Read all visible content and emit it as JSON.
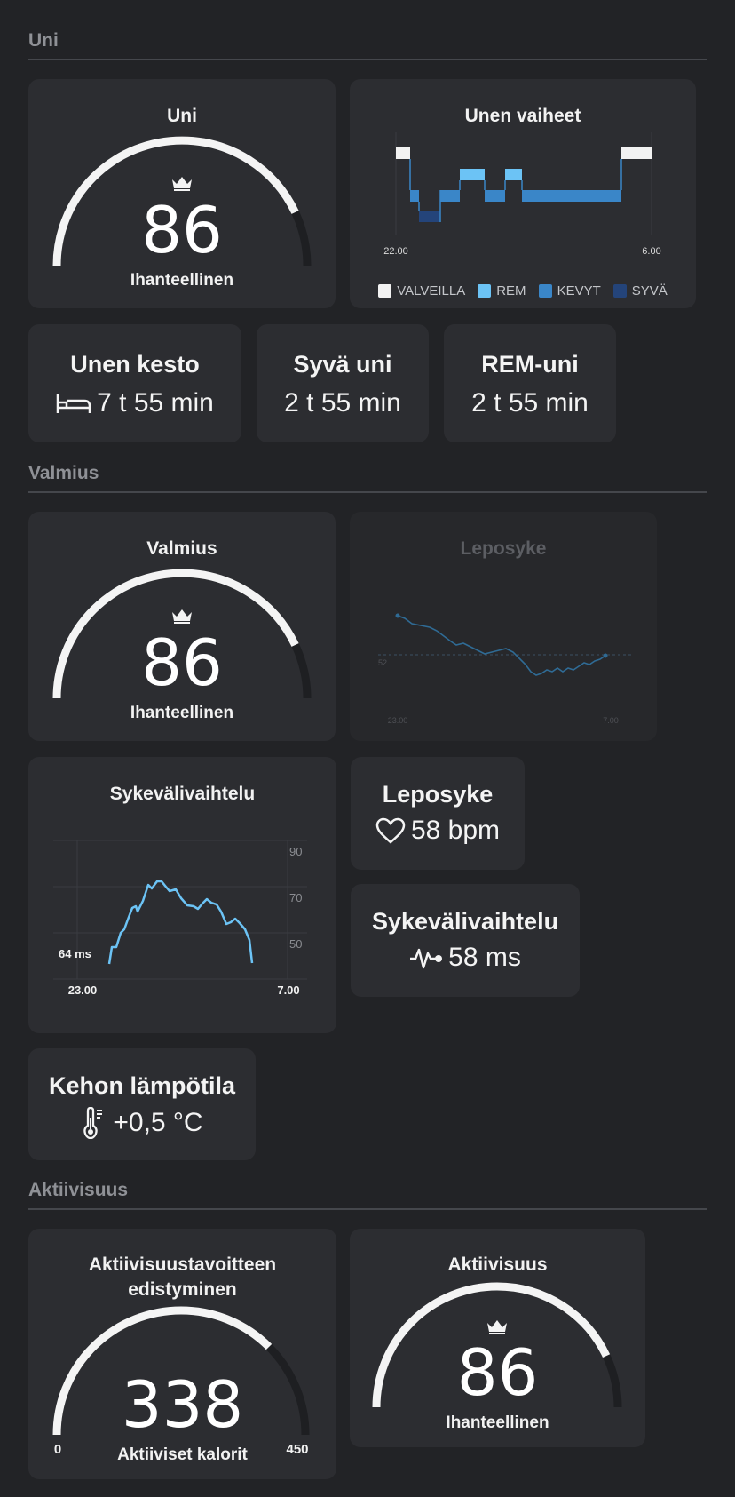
{
  "sections": {
    "sleep": "Uni",
    "readiness": "Valmius",
    "activity": "Aktiivisuus"
  },
  "sleep_score": {
    "title": "Uni",
    "value": "86",
    "label": "Ihanteellinen",
    "fraction": 0.86,
    "icon": "crown-icon"
  },
  "sleep_stages": {
    "title": "Unen vaiheet",
    "start": "22.00",
    "end": "6.00",
    "legend": [
      {
        "label": "VALVEILLA",
        "color": "#f2f2f2"
      },
      {
        "label": "REM",
        "color": "#6cc3f5"
      },
      {
        "label": "KEVYT",
        "color": "#3a86c8"
      },
      {
        "label": "SYVÄ",
        "color": "#24447a"
      }
    ]
  },
  "sleep_stats": [
    {
      "title": "Unen kesto",
      "value": "7 t 55 min",
      "icon": "bed-icon"
    },
    {
      "title": "Syvä uni",
      "value": "2 t 55 min"
    },
    {
      "title": "REM-uni",
      "value": "2 t 55 min"
    }
  ],
  "readiness_score": {
    "title": "Valmius",
    "value": "86",
    "label": "Ihanteellinen",
    "fraction": 0.86,
    "icon": "crown-icon"
  },
  "resting_hr_chart": {
    "title": "Leposyke",
    "ref": "52",
    "start": "23.00",
    "end": "7.00"
  },
  "hrv_chart": {
    "title": "Sykevälivaihtelu",
    "yticks": [
      "90",
      "70",
      "50"
    ],
    "current": "64 ms",
    "start": "23.00",
    "end": "7.00"
  },
  "resting_hr_stat": {
    "title": "Leposyke",
    "value": "58 bpm",
    "icon": "heart-icon"
  },
  "hrv_stat": {
    "title": "Sykevälivaihtelu",
    "value": "58 ms",
    "icon": "pulse-icon"
  },
  "body_temp_stat": {
    "title": "Kehon lämpötila",
    "value": "+0,5 °C",
    "icon": "thermometer-icon"
  },
  "activity_goal": {
    "title_line1": "Aktiivisuustavoitteen",
    "title_line2": "edistyminen",
    "value": "338",
    "label": "Aktiiviset kalorit",
    "min": "0",
    "max": "450",
    "progress": 338,
    "goal": 450
  },
  "activity_score": {
    "title": "Aktiivisuus",
    "value": "86",
    "label": "Ihanteellinen",
    "fraction": 0.86,
    "icon": "crown-icon"
  }
}
